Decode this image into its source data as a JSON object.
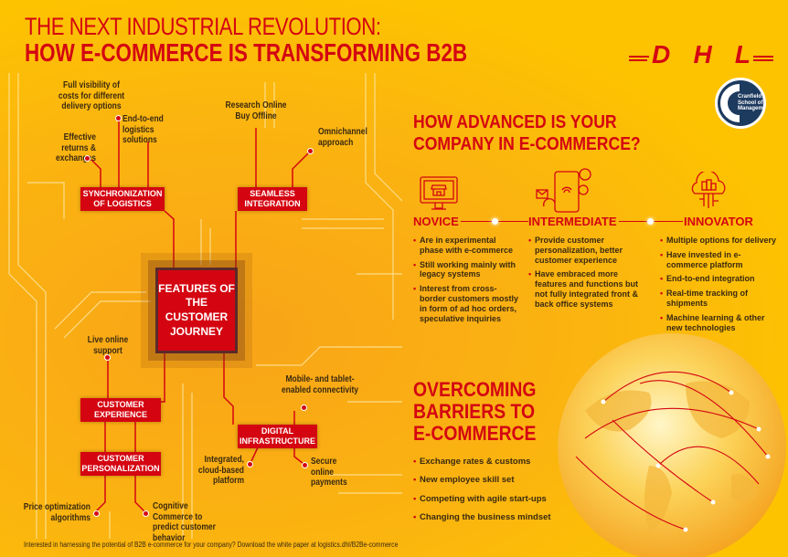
{
  "header": {
    "title_line1": "THE NEXT INDUSTRIAL REVOLUTION:",
    "title_line2": "HOW E-COMMERCE IS TRANSFORMING B2B"
  },
  "logos": {
    "dhl": "DHL",
    "cranfield": "Cranfield School of Management"
  },
  "circuit": {
    "chip": "FEATURES OF THE CUSTOMER JOURNEY",
    "boxes": {
      "sync": "SYNCHRONIZATION OF LOGISTICS",
      "seamless": "SEAMLESS INTEGRATION",
      "experience": "CUSTOMER EXPERIENCE",
      "personalization": "CUSTOMER PERSONALIZATION",
      "digital": "DIGITAL INFRASTRUCTURE"
    },
    "labels": {
      "visibility": "Full visibility of costs for different delivery options",
      "end_to_end": "End-to-end logistics solutions",
      "returns": "Effective returns & exchanges",
      "ropo": "Research Online Buy Offline",
      "omni": "Omnichannel approach",
      "live": "Live online support",
      "mobile": "Mobile- and tablet-enabled connectivity",
      "cloud": "Integrated, cloud-based platform",
      "payments": "Secure online payments",
      "price": "Price optimization algorithms",
      "cognitive": "Cognitive Commerce to predict customer behavior"
    }
  },
  "advanced": {
    "heading_line1": "HOW ADVANCED IS YOUR",
    "heading_line2": "COMPANY IN E-COMMERCE?",
    "stages": [
      {
        "name": "NOVICE",
        "icon": "storefront-monitor-icon",
        "bullets": [
          "Are in experimental phase with e-commerce",
          "Still working mainly with legacy systems",
          "Interest from cross-border customers mostly in form of ad hoc orders, speculative inquiries"
        ]
      },
      {
        "name": "INTERMEDIATE",
        "icon": "smartphone-wifi-icon",
        "bullets": [
          "Provide customer personalization, better customer experience",
          "Have embraced more features and functions but not fully integrated front & back office systems"
        ]
      },
      {
        "name": "INNOVATOR",
        "icon": "cloud-network-icon",
        "bullets": [
          "Multiple options for delivery",
          "Have invested in e-commerce platform",
          "End-to-end integration",
          "Real-time tracking of shipments",
          "Machine learning & other new technologies"
        ]
      }
    ]
  },
  "barriers": {
    "heading_line1": "OVERCOMING",
    "heading_line2": "BARRIERS TO",
    "heading_line3": "E-COMMERCE",
    "items": [
      "Exchange rates & customs",
      "New employee skill set",
      "Competing with agile start-ups",
      "Changing the business mindset"
    ]
  },
  "footer": "Interested in harnessing the potential of B2B e-commerce for your company? Download the white paper at logistics.dhl/B2Be-commerce",
  "colors": {
    "red": "#d40511",
    "yellow": "#fdc300",
    "orange": "#f8a418"
  }
}
